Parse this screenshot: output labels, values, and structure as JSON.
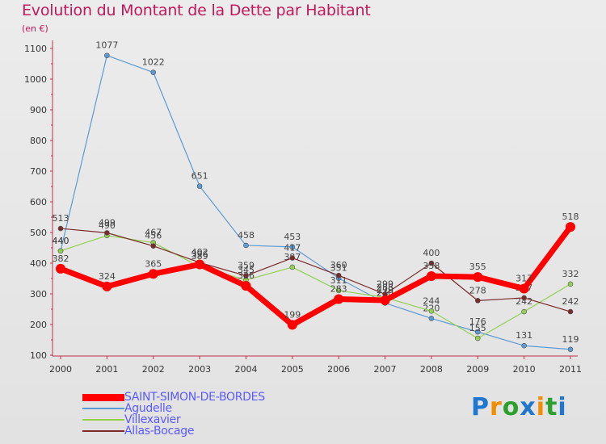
{
  "chart_data": {
    "type": "line",
    "title": "Evolution du Montant de la Dette par Habitant",
    "subtitle": "(en €)",
    "categories": [
      "2000",
      "2001",
      "2002",
      "2003",
      "2004",
      "2005",
      "2006",
      "2007",
      "2008",
      "2009",
      "2010",
      "2011"
    ],
    "yticks": [
      100,
      200,
      300,
      400,
      500,
      600,
      700,
      800,
      900,
      1000,
      1100
    ],
    "ylim": [
      100,
      1150
    ],
    "grid": false,
    "legend_position": "bottom-left",
    "series": [
      {
        "name": "SAINT-SIMON-DE-BORDES",
        "color": "#ff0000",
        "values": [
          382,
          324,
          365,
          396,
          326,
          199,
          283,
          279,
          358,
          355,
          317,
          518
        ]
      },
      {
        "name": "Agudelle",
        "color": "#5b9bd5",
        "values": [
          440,
          1077,
          1022,
          651,
          458,
          453,
          351,
          270,
          220,
          176,
          131,
          119
        ]
      },
      {
        "name": "Villexavier",
        "color": "#92d050",
        "values": [
          440,
          490,
          467,
          389,
          345,
          387,
          311,
          288,
          244,
          155,
          242,
          332
        ]
      },
      {
        "name": "Allas-Bocage",
        "color": "#7a2a2a",
        "values": [
          513,
          499,
          456,
          402,
          359,
          417,
          360,
          299,
          400,
          278,
          287,
          242
        ]
      }
    ]
  },
  "brand": {
    "letters": [
      "P",
      "r",
      "o",
      "x",
      "i",
      "t",
      "i"
    ],
    "colors": [
      "#1f77d0",
      "#f28c00",
      "#2ca02c",
      "#1f77d0",
      "#f28c00",
      "#2ca02c",
      "#1f77d0"
    ]
  }
}
